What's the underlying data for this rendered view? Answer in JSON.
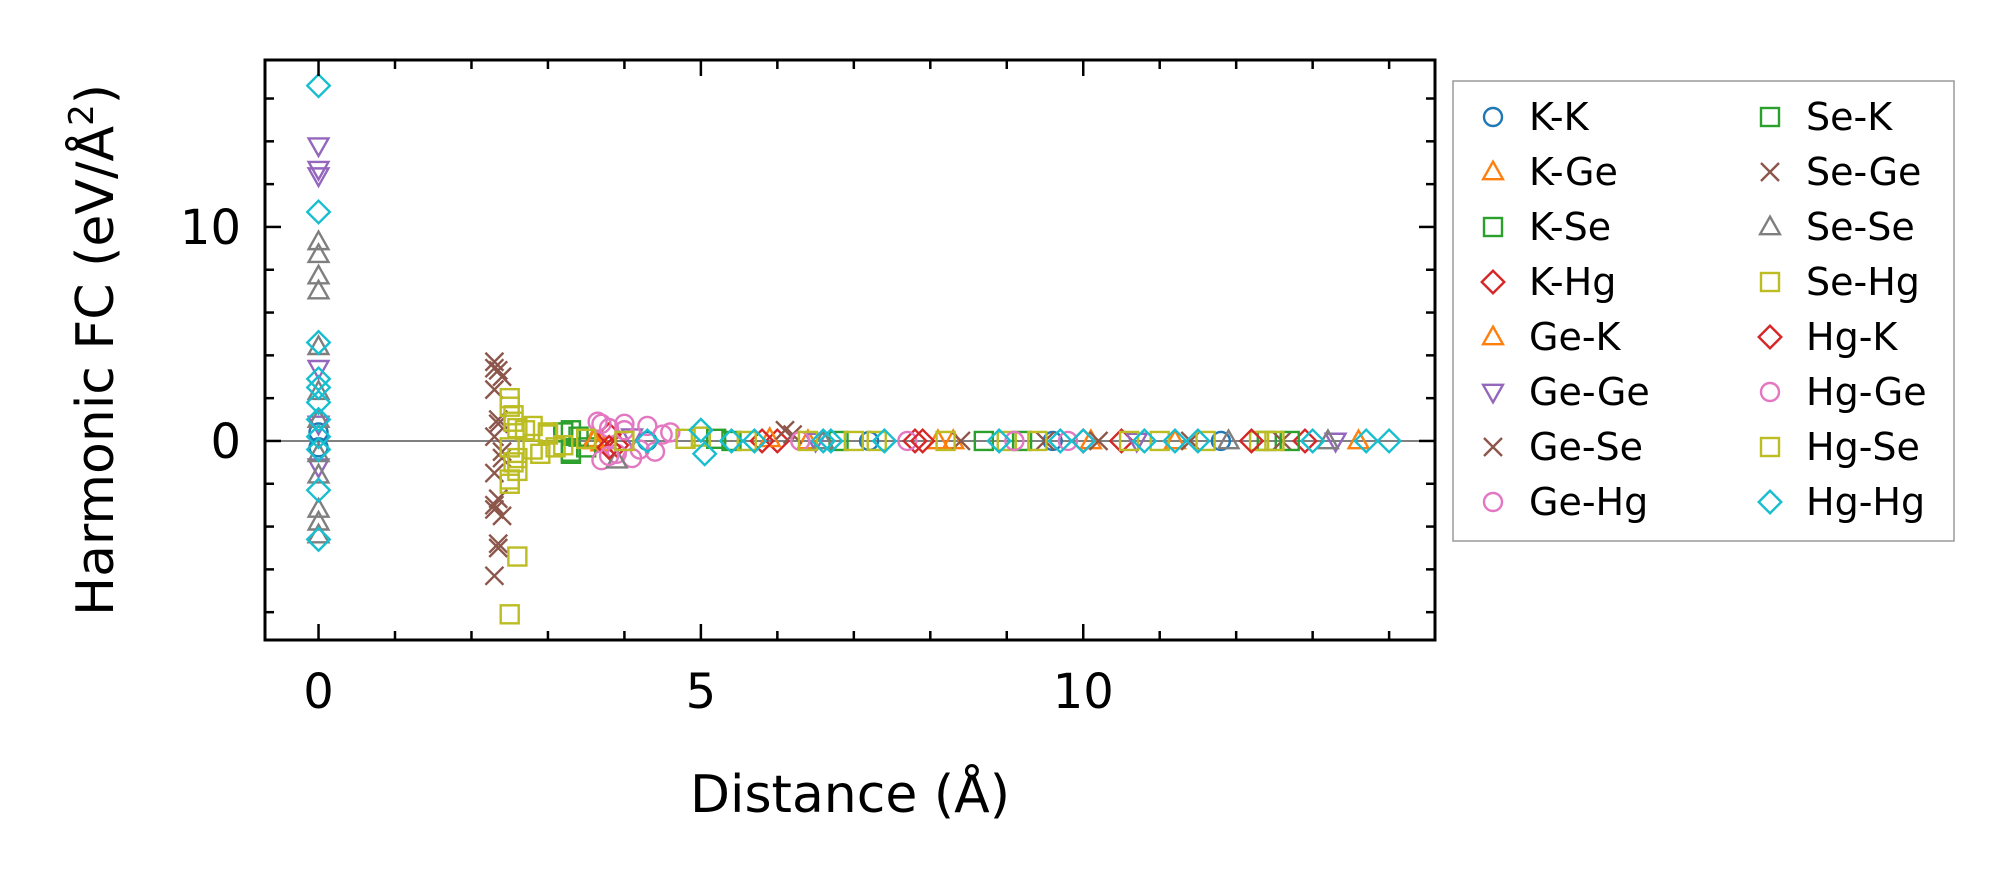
{
  "chart_data": {
    "type": "scatter",
    "title": "",
    "xlabel": "Distance (Å)",
    "ylabel_main": "Harmonic FC (eV/Å",
    "ylabel_sup": "2",
    "ylabel_close": ")",
    "xlim": [
      -0.7,
      14.6
    ],
    "ylim": [
      -9.3,
      17.8
    ],
    "xticks": [
      0,
      5,
      10
    ],
    "yticks": [
      0,
      10
    ],
    "legend_position": "outside-right",
    "zero_line": true,
    "series": [
      {
        "name": "K-K",
        "marker": "circle",
        "color": "#1f77b4",
        "points": [
          [
            0,
            0.4
          ],
          [
            0,
            -0.3
          ],
          [
            4.3,
            0.0
          ],
          [
            7.2,
            0.0
          ],
          [
            9.6,
            0.0
          ],
          [
            11.8,
            0.0
          ]
        ]
      },
      {
        "name": "K-Ge",
        "marker": "triangle-up",
        "color": "#ff7f0e",
        "points": [
          [
            3.6,
            0.1
          ],
          [
            3.7,
            -0.1
          ],
          [
            6.4,
            0.0
          ],
          [
            8.3,
            0.0
          ],
          [
            10.1,
            0.0
          ],
          [
            13.6,
            0.0
          ]
        ]
      },
      {
        "name": "K-Se",
        "marker": "square",
        "color": "#2ca02c",
        "points": [
          [
            3.3,
            0.5
          ],
          [
            3.3,
            -0.6
          ],
          [
            3.4,
            0.2
          ],
          [
            3.5,
            -0.3
          ],
          [
            5.2,
            0.1
          ],
          [
            6.8,
            0.0
          ],
          [
            9.2,
            0.0
          ],
          [
            12.4,
            0.0
          ]
        ]
      },
      {
        "name": "K-Hg",
        "marker": "diamond",
        "color": "#d62728",
        "points": [
          [
            3.8,
            0.3
          ],
          [
            3.9,
            -0.2
          ],
          [
            6.0,
            0.0
          ],
          [
            7.8,
            0.0
          ],
          [
            10.5,
            0.0
          ],
          [
            12.9,
            0.0
          ]
        ]
      },
      {
        "name": "Ge-K",
        "marker": "triangle-up",
        "color": "#ff7f0e",
        "points": [
          [
            3.6,
            0.0
          ],
          [
            5.9,
            0.1
          ],
          [
            8.1,
            0.0
          ],
          [
            11.2,
            0.0
          ]
        ]
      },
      {
        "name": "Ge-Ge",
        "marker": "triangle-down",
        "color": "#9467bd",
        "points": [
          [
            0,
            13.8
          ],
          [
            0,
            12.7
          ],
          [
            0,
            12.4
          ],
          [
            0,
            3.4
          ],
          [
            0,
            0.8
          ],
          [
            0,
            -1.2
          ],
          [
            4.1,
            0.2
          ],
          [
            6.5,
            0.0
          ],
          [
            10.7,
            0.0
          ],
          [
            13.3,
            0.0
          ]
        ]
      },
      {
        "name": "Ge-Se",
        "marker": "x",
        "color": "#8c564b",
        "points": [
          [
            2.3,
            3.7
          ],
          [
            2.35,
            3.3
          ],
          [
            2.4,
            3.0
          ],
          [
            2.3,
            2.4
          ],
          [
            2.35,
            0.8
          ],
          [
            2.3,
            0.2
          ],
          [
            2.4,
            -0.5
          ],
          [
            2.3,
            -1.5
          ],
          [
            2.35,
            -2.7
          ],
          [
            2.3,
            -3.2
          ],
          [
            2.4,
            -3.5
          ],
          [
            2.35,
            -5.0
          ],
          [
            2.3,
            -6.3
          ],
          [
            6.1,
            0.5
          ],
          [
            8.4,
            0.0
          ],
          [
            10.2,
            0.0
          ],
          [
            12.6,
            0.0
          ]
        ]
      },
      {
        "name": "Ge-Hg",
        "marker": "circle",
        "color": "#e377c2",
        "points": [
          [
            3.65,
            0.9
          ],
          [
            3.7,
            -0.9
          ],
          [
            3.8,
            0.6
          ],
          [
            3.9,
            -0.6
          ],
          [
            4.0,
            0.8
          ],
          [
            4.1,
            -0.8
          ],
          [
            4.3,
            0.7
          ],
          [
            4.4,
            -0.5
          ],
          [
            4.6,
            0.4
          ],
          [
            7.7,
            0.0
          ],
          [
            9.8,
            0.0
          ]
        ]
      },
      {
        "name": "Se-K",
        "marker": "square",
        "color": "#2ca02c",
        "points": [
          [
            3.2,
            0.4
          ],
          [
            3.3,
            -0.5
          ],
          [
            5.4,
            0.0
          ],
          [
            8.7,
            0.0
          ],
          [
            12.7,
            0.0
          ]
        ]
      },
      {
        "name": "Se-Ge",
        "marker": "x",
        "color": "#8c564b",
        "points": [
          [
            2.3,
            3.4
          ],
          [
            2.35,
            1.0
          ],
          [
            2.4,
            -0.8
          ],
          [
            2.3,
            -3.0
          ],
          [
            2.35,
            -4.8
          ],
          [
            6.2,
            0.3
          ],
          [
            9.5,
            0.0
          ],
          [
            11.4,
            0.0
          ]
        ]
      },
      {
        "name": "Se-Se",
        "marker": "triangle-up",
        "color": "#7f7f7f",
        "points": [
          [
            0,
            9.3
          ],
          [
            0,
            8.7
          ],
          [
            0,
            7.7
          ],
          [
            0,
            7.0
          ],
          [
            0,
            4.4
          ],
          [
            0,
            2.3
          ],
          [
            0,
            1.0
          ],
          [
            0,
            -0.6
          ],
          [
            0,
            -1.6
          ],
          [
            0,
            -3.2
          ],
          [
            0,
            -3.8
          ],
          [
            0,
            -4.4
          ],
          [
            3.9,
            -0.9
          ],
          [
            6.6,
            0.0
          ],
          [
            11.9,
            0.0
          ],
          [
            13.2,
            0.0
          ]
        ]
      },
      {
        "name": "Se-Hg",
        "marker": "square",
        "color": "#bcbd22",
        "points": [
          [
            2.5,
            2.0
          ],
          [
            2.55,
            1.2
          ],
          [
            2.6,
            0.6
          ],
          [
            2.5,
            -0.3
          ],
          [
            2.55,
            -1.0
          ],
          [
            2.6,
            -1.4
          ],
          [
            2.5,
            -2.0
          ],
          [
            2.6,
            -5.4
          ],
          [
            2.5,
            -8.1
          ],
          [
            2.8,
            0.7
          ],
          [
            2.9,
            -0.6
          ],
          [
            3.0,
            0.4
          ],
          [
            3.1,
            -0.3
          ],
          [
            5.0,
            0.2
          ],
          [
            7.0,
            0.0
          ],
          [
            9.0,
            0.0
          ],
          [
            11.0,
            0.0
          ],
          [
            12.3,
            0.0
          ]
        ]
      },
      {
        "name": "Hg-K",
        "marker": "diamond",
        "color": "#d62728",
        "points": [
          [
            3.8,
            -0.3
          ],
          [
            5.8,
            0.0
          ],
          [
            7.9,
            0.0
          ],
          [
            10.0,
            0.0
          ],
          [
            12.2,
            0.0
          ]
        ]
      },
      {
        "name": "Hg-Ge",
        "marker": "circle",
        "color": "#e377c2",
        "points": [
          [
            3.7,
            0.8
          ],
          [
            3.8,
            -0.7
          ],
          [
            4.0,
            0.5
          ],
          [
            4.2,
            -0.4
          ],
          [
            4.5,
            0.3
          ],
          [
            6.3,
            0.0
          ],
          [
            9.1,
            0.0
          ]
        ]
      },
      {
        "name": "Hg-Se",
        "marker": "square",
        "color": "#bcbd22",
        "points": [
          [
            2.5,
            1.6
          ],
          [
            2.55,
            0.9
          ],
          [
            2.6,
            -0.8
          ],
          [
            2.5,
            -1.8
          ],
          [
            2.7,
            0.5
          ],
          [
            2.8,
            -0.4
          ],
          [
            3.0,
            0.3
          ],
          [
            3.2,
            -0.2
          ],
          [
            3.5,
            0.1
          ],
          [
            4.0,
            0.0
          ],
          [
            4.8,
            0.1
          ],
          [
            5.6,
            0.0
          ],
          [
            6.4,
            0.0
          ],
          [
            7.3,
            0.0
          ],
          [
            8.2,
            0.0
          ],
          [
            9.4,
            0.0
          ],
          [
            10.6,
            0.0
          ],
          [
            11.6,
            0.0
          ],
          [
            12.5,
            0.0
          ]
        ]
      },
      {
        "name": "Hg-Hg",
        "marker": "diamond",
        "color": "#17becf",
        "points": [
          [
            0,
            16.6
          ],
          [
            0,
            10.7
          ],
          [
            0,
            4.6
          ],
          [
            0,
            2.9
          ],
          [
            0,
            2.5
          ],
          [
            0,
            1.8
          ],
          [
            0,
            1.0
          ],
          [
            0,
            0.2
          ],
          [
            0,
            -0.4
          ],
          [
            0,
            -2.3
          ],
          [
            0,
            -4.6
          ],
          [
            4.3,
            0.0
          ],
          [
            5.0,
            0.5
          ],
          [
            5.05,
            -0.6
          ],
          [
            5.4,
            0.0
          ],
          [
            5.7,
            0.0
          ],
          [
            6.6,
            0.0
          ],
          [
            6.7,
            0.0
          ],
          [
            7.4,
            0.0
          ],
          [
            8.9,
            0.0
          ],
          [
            9.7,
            0.0
          ],
          [
            10.0,
            0.0
          ],
          [
            10.8,
            0.0
          ],
          [
            11.2,
            0.0
          ],
          [
            11.5,
            0.0
          ],
          [
            13.0,
            0.0
          ],
          [
            13.7,
            0.0
          ],
          [
            14.0,
            0.0
          ]
        ]
      }
    ]
  }
}
